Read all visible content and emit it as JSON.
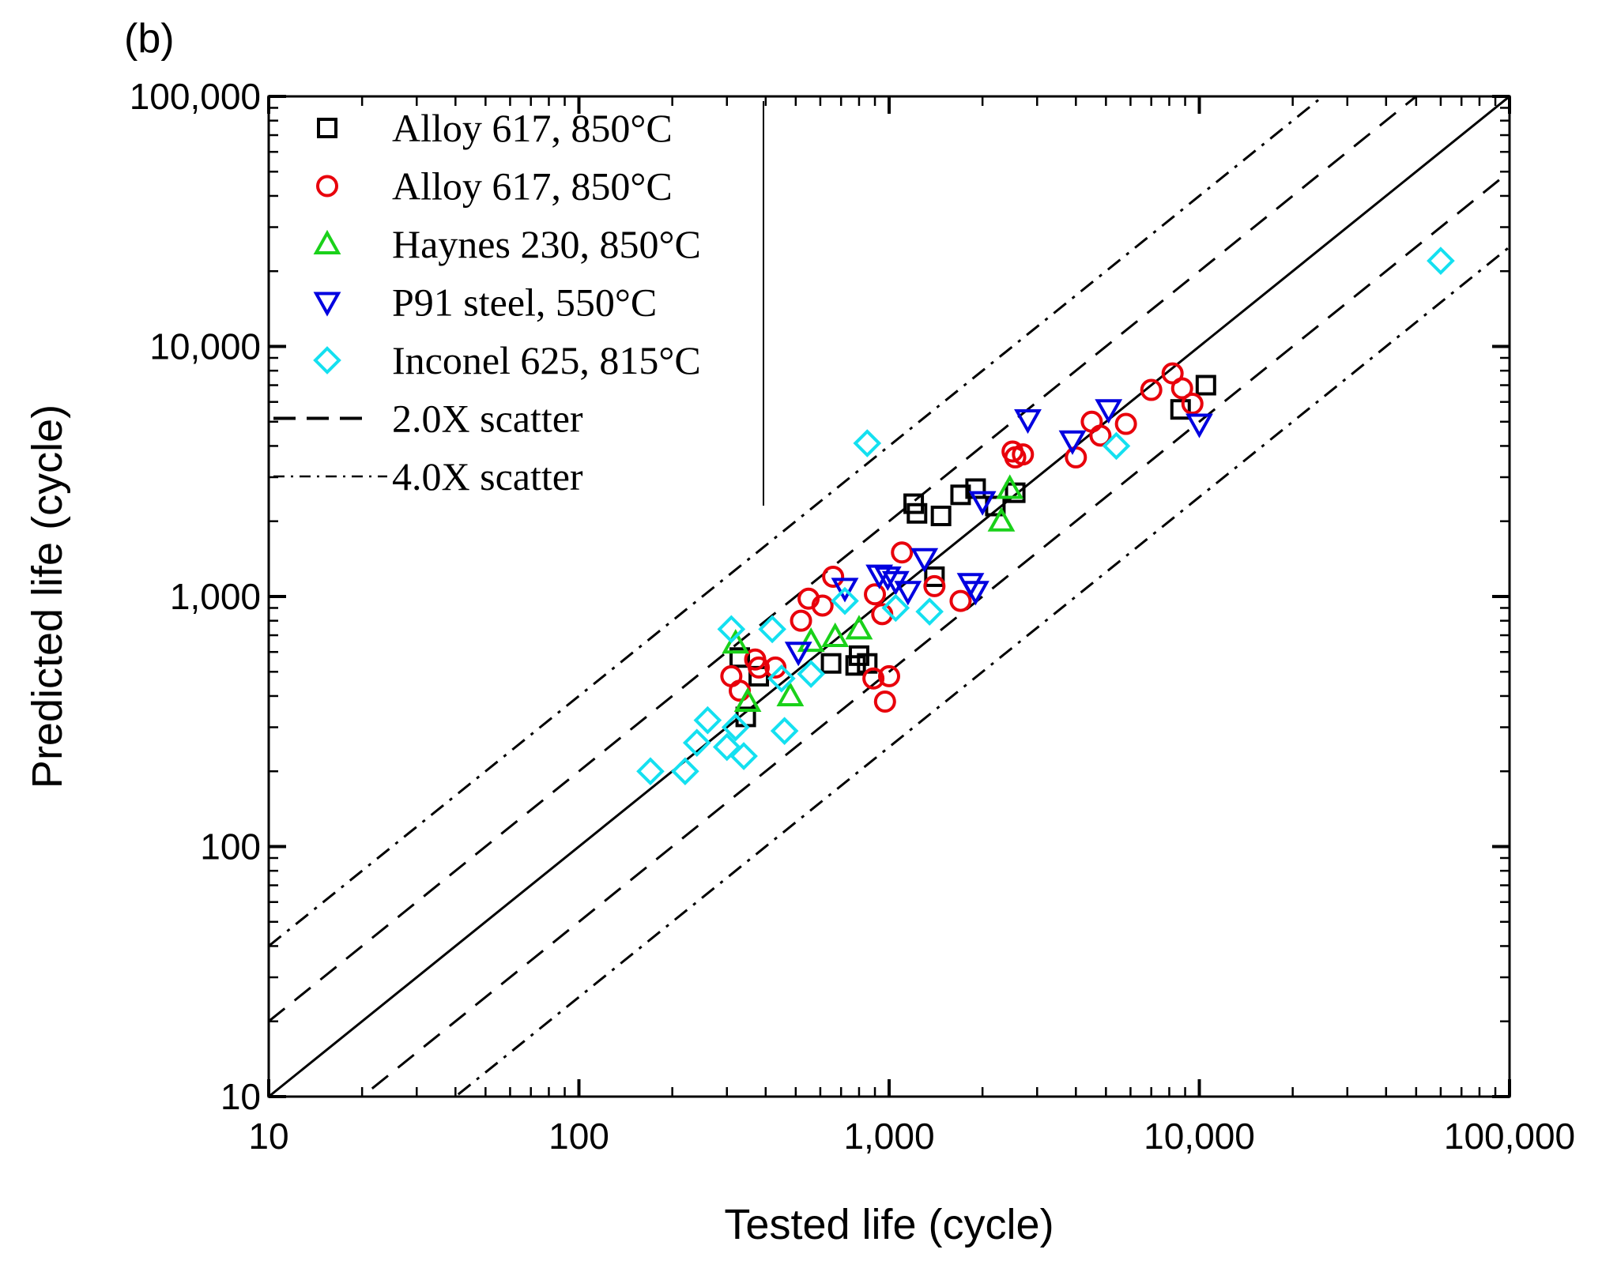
{
  "chart_data": {
    "type": "scatter",
    "panel_label": "(b)",
    "xlabel": "Tested life (cycle)",
    "ylabel": "Predicted life (cycle)",
    "xscale": "log",
    "yscale": "log",
    "xlim": [
      10,
      100000
    ],
    "ylim": [
      10,
      100000
    ],
    "x_ticks": [
      {
        "value": 10,
        "label": "10"
      },
      {
        "value": 100,
        "label": "100"
      },
      {
        "value": 1000,
        "label": "1,000"
      },
      {
        "value": 10000,
        "label": "10,000"
      },
      {
        "value": 100000,
        "label": "100,000"
      }
    ],
    "y_ticks": [
      {
        "value": 10,
        "label": "10"
      },
      {
        "value": 100,
        "label": "100"
      },
      {
        "value": 1000,
        "label": "1,000"
      },
      {
        "value": 10000,
        "label": "10,000"
      },
      {
        "value": 100000,
        "label": "100,000"
      }
    ],
    "legend_position": "top-left",
    "series": [
      {
        "name": "Alloy 617, 850°C",
        "marker": "square",
        "color": "#000000",
        "points": [
          [
            330,
            570
          ],
          [
            345,
            330
          ],
          [
            380,
            480
          ],
          [
            650,
            540
          ],
          [
            780,
            530
          ],
          [
            800,
            580
          ],
          [
            850,
            540
          ],
          [
            1200,
            2350
          ],
          [
            1230,
            2150
          ],
          [
            1470,
            2100
          ],
          [
            1700,
            2550
          ],
          [
            1900,
            2700
          ],
          [
            2200,
            2300
          ],
          [
            2550,
            2600
          ],
          [
            1400,
            1200
          ],
          [
            8700,
            5600
          ],
          [
            10500,
            7000
          ]
        ]
      },
      {
        "name": "Alloy 617, 850°C",
        "marker": "circle",
        "color": "#e8000b",
        "points": [
          [
            310,
            480
          ],
          [
            330,
            420
          ],
          [
            370,
            560
          ],
          [
            380,
            520
          ],
          [
            430,
            520
          ],
          [
            520,
            800
          ],
          [
            550,
            980
          ],
          [
            610,
            920
          ],
          [
            660,
            1200
          ],
          [
            890,
            470
          ],
          [
            900,
            1020
          ],
          [
            950,
            850
          ],
          [
            970,
            380
          ],
          [
            1000,
            480
          ],
          [
            1100,
            1500
          ],
          [
            1400,
            1100
          ],
          [
            1700,
            960
          ],
          [
            2500,
            3800
          ],
          [
            2550,
            3600
          ],
          [
            2700,
            3700
          ],
          [
            4000,
            3600
          ],
          [
            4500,
            5000
          ],
          [
            4800,
            4400
          ],
          [
            5800,
            4900
          ],
          [
            7000,
            6700
          ],
          [
            8200,
            7800
          ],
          [
            8800,
            6800
          ],
          [
            9500,
            5900
          ]
        ]
      },
      {
        "name": "Haynes 230, 850°C",
        "marker": "triangle-up",
        "color": "#1ad11a",
        "points": [
          [
            320,
            650
          ],
          [
            350,
            380
          ],
          [
            480,
            400
          ],
          [
            560,
            660
          ],
          [
            670,
            690
          ],
          [
            800,
            740
          ],
          [
            2300,
            2000
          ],
          [
            2450,
            2700
          ]
        ]
      },
      {
        "name": "P91 steel, 550°C",
        "marker": "triangle-down",
        "color": "#0000e0",
        "points": [
          [
            510,
            600
          ],
          [
            720,
            1080
          ],
          [
            930,
            1220
          ],
          [
            990,
            1200
          ],
          [
            1050,
            1150
          ],
          [
            1150,
            1050
          ],
          [
            1300,
            1420
          ],
          [
            1830,
            1130
          ],
          [
            1900,
            1050
          ],
          [
            2000,
            2400
          ],
          [
            2800,
            5100
          ],
          [
            3900,
            4200
          ],
          [
            5100,
            5600
          ],
          [
            10000,
            4900
          ]
        ]
      },
      {
        "name": "Inconel 625, 815°C",
        "marker": "diamond",
        "color": "#14e0f0",
        "points": [
          [
            170,
            200
          ],
          [
            220,
            200
          ],
          [
            240,
            260
          ],
          [
            260,
            320
          ],
          [
            300,
            250
          ],
          [
            310,
            740
          ],
          [
            320,
            300
          ],
          [
            340,
            230
          ],
          [
            420,
            740
          ],
          [
            450,
            470
          ],
          [
            460,
            290
          ],
          [
            560,
            490
          ],
          [
            720,
            960
          ],
          [
            850,
            4100
          ],
          [
            1050,
            900
          ],
          [
            1350,
            870
          ],
          [
            5400,
            4000
          ],
          [
            60000,
            22000
          ]
        ]
      }
    ],
    "reference_lines": [
      {
        "name": "1:1",
        "factor": 1,
        "style": "solid"
      },
      {
        "name": "2.0X scatter",
        "factors": [
          2,
          0.5
        ],
        "style": "dashed"
      },
      {
        "name": "4.0X scatter",
        "factors": [
          4,
          0.25
        ],
        "style": "dash-dot"
      }
    ],
    "legend": [
      {
        "label": "Alloy 617, 850°C",
        "marker": "square",
        "color": "#000000"
      },
      {
        "label": "Alloy 617, 850°C",
        "marker": "circle",
        "color": "#e8000b"
      },
      {
        "label": "Haynes 230, 850°C",
        "marker": "triangle-up",
        "color": "#1ad11a"
      },
      {
        "label": "P91 steel, 550°C",
        "marker": "triangle-down",
        "color": "#0000e0"
      },
      {
        "label": "Inconel 625, 815°C",
        "marker": "diamond",
        "color": "#14e0f0"
      },
      {
        "label": "2.0X scatter",
        "marker": "dashed-line",
        "color": "#000000"
      },
      {
        "label": "4.0X scatter",
        "marker": "dashdot-line",
        "color": "#000000"
      }
    ]
  }
}
